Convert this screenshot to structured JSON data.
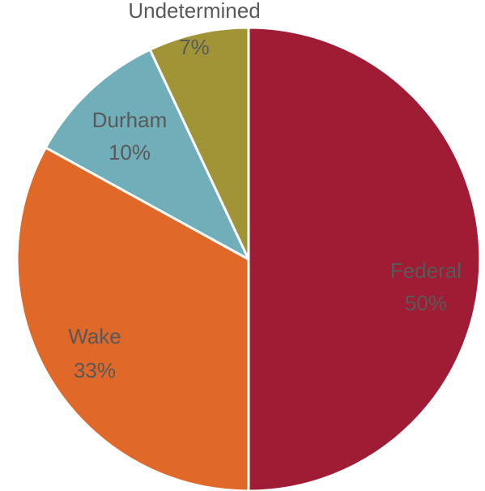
{
  "chart_data": {
    "type": "pie",
    "start_angle_deg": 0,
    "direction": "clockwise",
    "slices": [
      {
        "label": "Federal",
        "value": 50,
        "value_label": "50%",
        "color": "#a01c35"
      },
      {
        "label": "Wake",
        "value": 33,
        "value_label": "33%",
        "color": "#e06828"
      },
      {
        "label": "Durham",
        "value": 10,
        "value_label": "10%",
        "color": "#70aeba"
      },
      {
        "label": "Undetermined",
        "value": 7,
        "value_label": "7%",
        "color": "#a09437"
      }
    ],
    "label_color": "#595959",
    "slice_border_color": "#ffffff"
  }
}
